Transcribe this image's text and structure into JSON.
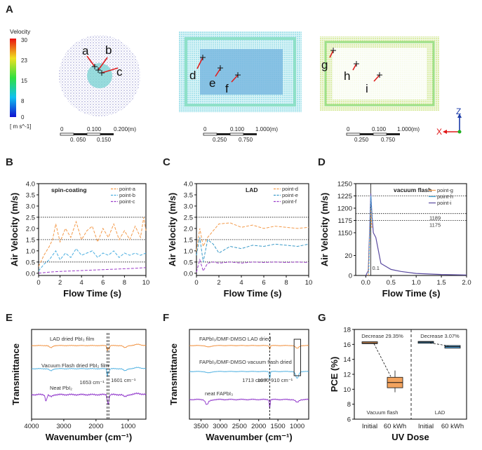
{
  "panel_labels": [
    "A",
    "B",
    "C",
    "D",
    "E",
    "F",
    "G"
  ],
  "panel_a": {
    "colorbar_title": "Velocity",
    "colorbar_ticks": [
      "30",
      "23",
      "15",
      "8",
      "0"
    ],
    "colorbar_unit": "[ m s^-1]",
    "scales": [
      {
        "top": [
          "0",
          "0.100",
          "0.200(m)"
        ],
        "bottom": [
          "0. 050",
          "0.150"
        ]
      },
      {
        "top": [
          "0",
          "0.100",
          "1.000(m)"
        ],
        "bottom": [
          "0.250",
          "0.750"
        ]
      },
      {
        "top": [
          "0",
          "0.100",
          "1.000(m)"
        ],
        "bottom": [
          "0.250",
          "0.750"
        ]
      }
    ],
    "points": [
      "a",
      "b",
      "c",
      "d",
      "e",
      "f",
      "g",
      "h",
      "i"
    ],
    "axes": {
      "z": "Z",
      "x": "X"
    }
  },
  "chart_data": [
    {
      "type": "line",
      "panel": "B",
      "title": "spin-coating",
      "xlabel": "Flow Time (s)",
      "ylabel": "Air Velocity (m/s)",
      "xlim": [
        0,
        10
      ],
      "ylim": [
        -0.1,
        4.0
      ],
      "xticks": [
        "0",
        "2",
        "4",
        "6",
        "8",
        "10"
      ],
      "yticks": [
        "0.0",
        "0.5",
        "1.0",
        "1.5",
        "2.0",
        "2.5",
        "3.0",
        "3.5",
        "4.0"
      ],
      "ref_lines": [
        0.5,
        1.5,
        2.5
      ],
      "series": [
        {
          "name": "point-a",
          "color": "#f39a4a",
          "style": "dashed",
          "x": [
            0,
            0.5,
            1.0,
            1.3,
            1.6,
            2.0,
            2.5,
            3.0,
            3.5,
            4.0,
            4.5,
            5.0,
            5.5,
            6.0,
            6.5,
            7.0,
            7.5,
            8.0,
            8.5,
            9.0,
            9.5,
            9.8,
            10.0
          ],
          "y": [
            0.3,
            0.8,
            1.2,
            1.5,
            2.2,
            1.4,
            2.0,
            1.6,
            2.3,
            1.5,
            1.9,
            2.1,
            1.4,
            2.0,
            1.6,
            2.2,
            1.5,
            1.9,
            1.5,
            2.1,
            1.6,
            2.5,
            1.9
          ]
        },
        {
          "name": "point-b",
          "color": "#4aaee0",
          "style": "dashed",
          "x": [
            0,
            0.5,
            1.0,
            1.3,
            1.6,
            2.0,
            2.5,
            3.0,
            3.5,
            4.0,
            4.5,
            5.0,
            5.5,
            6.0,
            6.5,
            7.0,
            7.5,
            8.0,
            8.5,
            9.0,
            9.5,
            10.0
          ],
          "y": [
            0.1,
            0.4,
            0.6,
            0.8,
            1.0,
            0.6,
            0.9,
            0.7,
            1.1,
            0.8,
            0.9,
            1.0,
            0.7,
            0.9,
            0.8,
            1.0,
            0.7,
            0.9,
            0.8,
            0.9,
            0.8,
            0.9
          ]
        },
        {
          "name": "point-c",
          "color": "#9a3cc8",
          "style": "dashed",
          "x": [
            0,
            1,
            2,
            3,
            4,
            5,
            6,
            7,
            8,
            9,
            10
          ],
          "y": [
            0.0,
            0.05,
            0.08,
            0.1,
            0.12,
            0.14,
            0.16,
            0.18,
            0.2,
            0.22,
            0.25
          ]
        }
      ]
    },
    {
      "type": "line",
      "panel": "C",
      "title": "LAD",
      "xlabel": "Flow Time (s)",
      "ylabel": "Air Velocity (m/s)",
      "xlim": [
        0,
        10
      ],
      "ylim": [
        -0.1,
        4.0
      ],
      "xticks": [
        "0",
        "2",
        "4",
        "6",
        "8",
        "10"
      ],
      "yticks": [
        "0.0",
        "0.5",
        "1.0",
        "1.5",
        "2.0",
        "2.5",
        "3.0",
        "3.5",
        "4.0"
      ],
      "ref_lines": [
        0.5,
        1.5,
        2.5
      ],
      "series": [
        {
          "name": "point-d",
          "color": "#f39a4a",
          "style": "dashed",
          "x": [
            0,
            0.3,
            0.6,
            1.0,
            1.5,
            2.0,
            3.0,
            4.0,
            5.0,
            6.0,
            7.0,
            8.0,
            9.0,
            10.0
          ],
          "y": [
            1.0,
            2.0,
            1.2,
            1.6,
            1.9,
            2.2,
            2.25,
            2.05,
            2.15,
            2.0,
            2.1,
            2.05,
            2.0,
            2.05
          ]
        },
        {
          "name": "point-e",
          "color": "#3a9ac8",
          "style": "dashed",
          "x": [
            0,
            0.3,
            0.6,
            1.0,
            1.5,
            2.0,
            3.0,
            4.0,
            5.0,
            6.0,
            7.0,
            8.0,
            9.0,
            10.0
          ],
          "y": [
            0.8,
            1.6,
            0.5,
            1.5,
            1.3,
            0.9,
            1.2,
            1.1,
            1.25,
            1.2,
            1.3,
            1.25,
            1.2,
            1.3
          ]
        },
        {
          "name": "point-f",
          "color": "#9a3cc8",
          "style": "dashed",
          "x": [
            0,
            0.3,
            0.6,
            1.0,
            1.5,
            2.0,
            3.0,
            4.0,
            5.0,
            6.0,
            7.0,
            8.0,
            9.0,
            10.0
          ],
          "y": [
            0.05,
            0.6,
            0.1,
            0.45,
            0.5,
            0.45,
            0.5,
            0.45,
            0.5,
            0.48,
            0.5,
            0.48,
            0.5,
            0.48
          ]
        }
      ]
    },
    {
      "type": "line",
      "panel": "D",
      "title": "vacuum flash",
      "xlabel": "Flow Time (s)",
      "ylabel": "Air Velocity (m/s)",
      "xlim": [
        -0.2,
        2.0
      ],
      "xticks": [
        "0.0",
        "0.5",
        "1.0",
        "1.5",
        "2.0"
      ],
      "yticks": [
        "0",
        "20",
        "1150",
        "1175",
        "1200",
        "1225",
        "1250"
      ],
      "annotations": [
        "1189",
        "1175",
        "0.1"
      ],
      "ref_lines": [
        1225,
        1189,
        1175
      ],
      "series": [
        {
          "name": "point-g",
          "color": "#f39a4a",
          "style": "solid"
        },
        {
          "name": "point-h",
          "color": "#4aaee0",
          "style": "solid"
        },
        {
          "name": "point-i",
          "color": "#5a4aa0",
          "style": "solid",
          "x": [
            0.0,
            0.05,
            0.1,
            0.12,
            0.15,
            0.2,
            0.3,
            0.5,
            0.7,
            1.0,
            1.5,
            2.0
          ],
          "y": [
            0,
            5,
            1230,
            1190,
            1150,
            38,
            12,
            6,
            4,
            2,
            1,
            0.5
          ]
        }
      ]
    },
    {
      "type": "line",
      "panel": "E",
      "xlabel": "Wavenumber (cm⁻¹)",
      "ylabel": "Transmittance",
      "xticks": [
        "4000",
        "3000",
        "2000",
        "1000"
      ],
      "annotations": [
        "1653 cm⁻¹",
        "1601 cm⁻¹"
      ],
      "series": [
        {
          "name": "LAD dried PbI₂ film",
          "color": "#f08a32"
        },
        {
          "name": "Vacuum Flash dried PbI₂ film",
          "color": "#4aaee0"
        },
        {
          "name": "Neat PbI₂",
          "color": "#8a2cc8"
        }
      ]
    },
    {
      "type": "line",
      "panel": "F",
      "xlabel": "Wavenumber (cm⁻¹)",
      "ylabel": "Transmittance",
      "xticks": [
        "3500",
        "3000",
        "2500",
        "2000",
        "1500",
        "1000"
      ],
      "annotations": [
        "1713 cm⁻¹",
        "1080-910 cm⁻¹"
      ],
      "series": [
        {
          "name": "FAPbI₃/DMF-DMSO LAD dried",
          "color": "#f08a32"
        },
        {
          "name": "FAPbI₃/DMF-DMSO vacuum flash dried",
          "color": "#4aaee0"
        },
        {
          "name": "neat FAPbI₃",
          "color": "#8a2cc8"
        }
      ]
    },
    {
      "type": "box",
      "panel": "G",
      "xlabel": "UV Dose",
      "ylabel": "PCE (%)",
      "ylim": [
        6,
        18
      ],
      "yticks": [
        "6",
        "8",
        "10",
        "12",
        "14",
        "16",
        "18"
      ],
      "categories": [
        "Initial",
        "60 kWh",
        "Initial",
        "60 kWh"
      ],
      "groups": [
        "Vacuum flash",
        "LAD"
      ],
      "annotations": [
        "Decrease 29.35%",
        "Decrease 3.07%"
      ],
      "values": [
        {
          "group": "Vacuum flash",
          "label": "Initial",
          "median": 16.2,
          "q1": 16.1,
          "q3": 16.35
        },
        {
          "group": "Vacuum flash",
          "label": "60 kWh",
          "median": 10.9,
          "q1": 10.2,
          "q3": 11.6,
          "min": 9.6,
          "max": 12.5
        },
        {
          "group": "LAD",
          "label": "Initial",
          "median": 16.3,
          "q1": 16.15,
          "q3": 16.4
        },
        {
          "group": "LAD",
          "label": "60 kWh",
          "median": 15.7,
          "q1": 15.5,
          "q3": 15.85
        }
      ]
    }
  ]
}
